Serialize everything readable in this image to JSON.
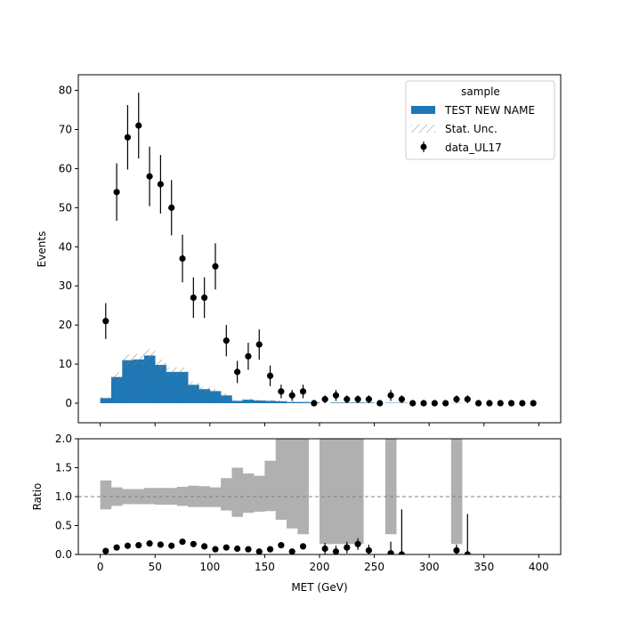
{
  "chart_data": [
    {
      "type": "bar",
      "panel": "main",
      "xlabel": "",
      "ylabel": "Events",
      "xlim": [
        -20,
        420
      ],
      "ylim": [
        -5,
        84
      ],
      "xticks": [
        0,
        50,
        100,
        150,
        200,
        250,
        300,
        350,
        400
      ],
      "yticks": [
        0,
        10,
        20,
        30,
        40,
        50,
        60,
        70,
        80
      ],
      "grid": false,
      "legend": {
        "title": "sample",
        "position": "top-right",
        "entries": [
          "TEST NEW NAME",
          "Stat. Unc.",
          "data_UL17"
        ]
      },
      "bin_edges": [
        0,
        10,
        20,
        30,
        40,
        50,
        60,
        70,
        80,
        90,
        100,
        110,
        120,
        130,
        140,
        150,
        160,
        170,
        180,
        190,
        200,
        210,
        220,
        230,
        240,
        250,
        260,
        270,
        280,
        290,
        300,
        310,
        320,
        330,
        340,
        350,
        360,
        370,
        380,
        390,
        400
      ],
      "series": [
        {
          "name": "TEST NEW NAME",
          "kind": "filled-histogram",
          "color": "#1f77b4",
          "values": [
            1.3,
            6.7,
            11.0,
            11.2,
            12.2,
            9.8,
            8.0,
            8.0,
            4.7,
            3.6,
            3.1,
            2.0,
            0.6,
            0.9,
            0.7,
            0.6,
            0.5,
            0.3,
            0.3,
            0.2,
            0.0,
            0.15,
            0.15,
            0.15,
            0.15,
            0.0,
            0.1,
            0.1,
            0.0,
            0.0,
            0.0,
            0.0,
            0.05,
            0.0,
            0.0,
            0.0,
            0.0,
            0.0,
            0.0,
            0.0
          ]
        },
        {
          "name": "Stat. Unc.",
          "kind": "hatched-band",
          "color": "#808080",
          "rel_unc": [
            0.25,
            0.18,
            0.13,
            0.13,
            0.13,
            0.14,
            0.14,
            0.15,
            0.17,
            0.19,
            0.18,
            0.25,
            0.4,
            0.32,
            0.35,
            0.4,
            0.5,
            0.6,
            0.6,
            0.6,
            0,
            0.8,
            0.8,
            0.8,
            0.8,
            0,
            0.6,
            0.6,
            0,
            0,
            0,
            0,
            0.8,
            0,
            0,
            0,
            0,
            0,
            0,
            0
          ]
        },
        {
          "name": "data_UL17",
          "kind": "errorbar",
          "color": "#000000",
          "x": [
            5,
            15,
            25,
            35,
            45,
            55,
            65,
            75,
            85,
            95,
            105,
            115,
            125,
            135,
            145,
            155,
            165,
            175,
            185,
            195,
            205,
            215,
            225,
            235,
            245,
            255,
            265,
            275,
            285,
            295,
            305,
            315,
            325,
            335,
            345,
            355,
            365,
            375,
            385,
            395
          ],
          "values": [
            21,
            54,
            68,
            71,
            58,
            56,
            50,
            37,
            27,
            27,
            35,
            16,
            8,
            12,
            15,
            7,
            3,
            2,
            3,
            0,
            1,
            2,
            1,
            1,
            1,
            0,
            2,
            1,
            0,
            0,
            0,
            0,
            1,
            1,
            0,
            0,
            0,
            0,
            0,
            0
          ]
        }
      ]
    },
    {
      "type": "scatter",
      "panel": "ratio",
      "xlabel": "MET (GeV)",
      "ylabel": "Ratio",
      "xlim": [
        -20,
        420
      ],
      "ylim": [
        0,
        2
      ],
      "xticks": [
        0,
        50,
        100,
        150,
        200,
        250,
        300,
        350,
        400
      ],
      "yticks": [
        0.0,
        0.5,
        1.0,
        1.5,
        2.0
      ],
      "reference_line": 1.0,
      "series": [
        {
          "kind": "unc-band",
          "color": "#b0b0b0",
          "bin_edges": [
            0,
            10,
            20,
            30,
            40,
            50,
            60,
            70,
            80,
            90,
            100,
            110,
            120,
            130,
            140,
            150,
            160,
            170,
            180,
            190,
            200,
            210,
            220,
            230,
            240,
            250,
            260,
            270,
            280,
            290,
            300,
            310,
            320,
            330,
            340,
            350,
            360,
            370,
            380,
            390,
            400
          ],
          "low": [
            0.78,
            0.84,
            0.87,
            0.87,
            0.87,
            0.86,
            0.86,
            0.84,
            0.82,
            0.82,
            0.82,
            0.76,
            0.65,
            0.72,
            0.74,
            0.75,
            0.6,
            0.45,
            0.35,
            null,
            0.18,
            0.18,
            0.18,
            0.18,
            null,
            null,
            0.35,
            null,
            null,
            null,
            null,
            null,
            0.18,
            null,
            null,
            null,
            null,
            null,
            null,
            null
          ],
          "high": [
            1.28,
            1.16,
            1.13,
            1.13,
            1.15,
            1.15,
            1.15,
            1.17,
            1.19,
            1.18,
            1.16,
            1.32,
            1.5,
            1.4,
            1.36,
            1.62,
            2.0,
            2.0,
            2.0,
            null,
            2.0,
            2.0,
            2.0,
            2.0,
            null,
            null,
            2.0,
            null,
            null,
            null,
            null,
            null,
            2.0,
            null,
            null,
            null,
            null,
            null,
            null,
            null
          ]
        },
        {
          "kind": "errorbar",
          "color": "#000000",
          "x": [
            5,
            15,
            25,
            35,
            45,
            55,
            65,
            75,
            85,
            95,
            105,
            115,
            125,
            135,
            145,
            155,
            165,
            175,
            185,
            205,
            215,
            225,
            235,
            245,
            265,
            275,
            325,
            335
          ],
          "values": [
            0.06,
            0.12,
            0.15,
            0.16,
            0.19,
            0.17,
            0.15,
            0.22,
            0.18,
            0.14,
            0.09,
            0.12,
            0.1,
            0.09,
            0.05,
            0.09,
            0.16,
            0.05,
            0.14,
            0.1,
            0.05,
            0.12,
            0.18,
            0.07,
            0.02,
            0.0,
            0.07,
            0.0
          ],
          "err_up": [
            0.04,
            0.04,
            0.04,
            0.04,
            0.04,
            0.04,
            0.04,
            0.04,
            0.04,
            0.04,
            0.04,
            0.04,
            0.04,
            0.04,
            0.04,
            0.04,
            0.04,
            0.04,
            0.04,
            0.1,
            0.1,
            0.1,
            0.1,
            0.1,
            0.2,
            0.78,
            0.1,
            0.7
          ],
          "err_dn": [
            0.04,
            0.04,
            0.04,
            0.04,
            0.04,
            0.04,
            0.04,
            0.04,
            0.04,
            0.04,
            0.04,
            0.04,
            0.04,
            0.04,
            0.04,
            0.04,
            0.04,
            0.04,
            0.04,
            0.1,
            0.05,
            0.1,
            0.1,
            0.07,
            0.02,
            0.0,
            0.07,
            0.0
          ]
        }
      ]
    }
  ]
}
